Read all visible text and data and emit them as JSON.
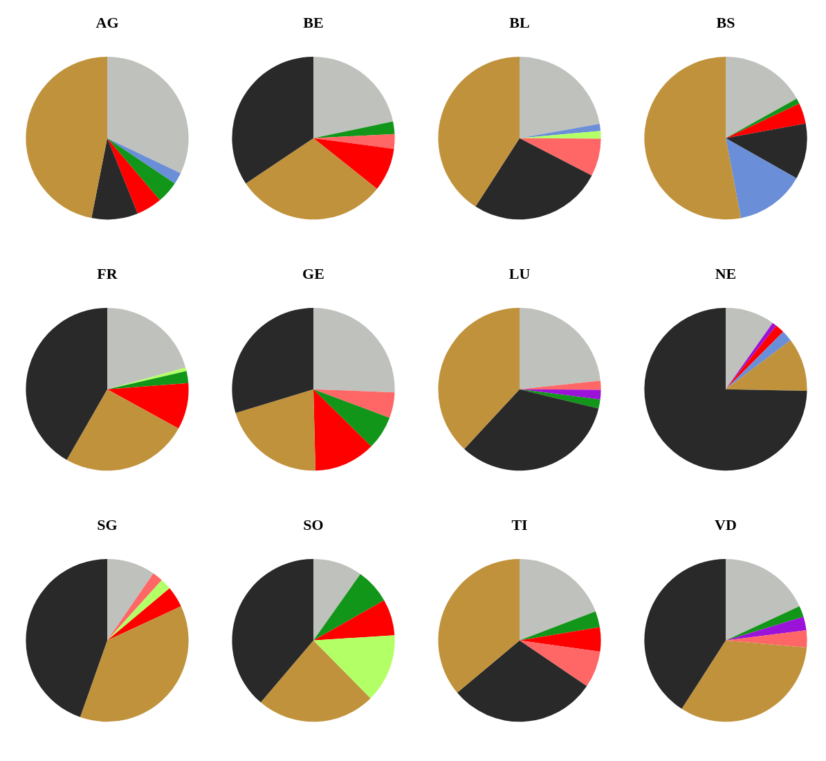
{
  "chart_data": [
    {
      "type": "pie",
      "title": "AG",
      "categories": [
        null,
        null,
        null,
        null,
        null,
        null
      ],
      "values": [
        32.1,
        2.3,
        4.4,
        5.1,
        9.2,
        46.9
      ],
      "colors": [
        "#bfc1bc",
        "#6a8ed8",
        "#119619",
        "#ff0000",
        "#292929",
        "#c1923c"
      ]
    },
    {
      "type": "pie",
      "title": "BE",
      "categories": [
        null,
        null,
        null,
        null,
        null,
        null
      ],
      "values": [
        21.7,
        2.5,
        2.9,
        8.6,
        29.9,
        34.4
      ],
      "colors": [
        "#bfc1bc",
        "#119619",
        "#ff6666",
        "#ff0000",
        "#c1923c",
        "#292929"
      ]
    },
    {
      "type": "pie",
      "title": "BL",
      "categories": [
        null,
        null,
        null,
        null,
        null,
        null
      ],
      "values": [
        22.2,
        1.4,
        1.5,
        7.5,
        26.5,
        40.9
      ],
      "colors": [
        "#bfc1bc",
        "#6a8ed8",
        "#b3ff66",
        "#ff6666",
        "#292929",
        "#c1923c"
      ]
    },
    {
      "type": "pie",
      "title": "BS",
      "categories": [
        null,
        null,
        null,
        null,
        null,
        null
      ],
      "values": [
        16.9,
        1.1,
        4.1,
        11.1,
        13.8,
        53.0
      ],
      "colors": [
        "#bfc1bc",
        "#119619",
        "#ff0000",
        "#292929",
        "#6a8ed8",
        "#c1923c"
      ]
    },
    {
      "type": "pie",
      "title": "FR",
      "categories": [
        null,
        null,
        null,
        null,
        null,
        null
      ],
      "values": [
        20.7,
        0.7,
        2.4,
        9.2,
        25.3,
        41.7
      ],
      "colors": [
        "#bfc1bc",
        "#b3ff66",
        "#119619",
        "#ff0000",
        "#c1923c",
        "#292929"
      ]
    },
    {
      "type": "pie",
      "title": "GE",
      "categories": [
        null,
        null,
        null,
        null,
        null,
        null
      ],
      "values": [
        25.6,
        5.1,
        6.7,
        12.2,
        20.7,
        29.7
      ],
      "colors": [
        "#bfc1bc",
        "#ff6666",
        "#119619",
        "#ff0000",
        "#c1923c",
        "#292929"
      ]
    },
    {
      "type": "pie",
      "title": "LU",
      "categories": [
        null,
        null,
        null,
        null,
        null,
        null
      ],
      "values": [
        23.3,
        1.8,
        1.9,
        1.8,
        33.1,
        38.1
      ],
      "colors": [
        "#bfc1bc",
        "#ff6666",
        "#9b12d9",
        "#119619",
        "#292929",
        "#c1923c"
      ]
    },
    {
      "type": "pie",
      "title": "NE",
      "categories": [
        null,
        null,
        null,
        null,
        null,
        null
      ],
      "values": [
        9.8,
        0.9,
        1.8,
        2.2,
        10.6,
        74.7
      ],
      "colors": [
        "#bfc1bc",
        "#9b12d9",
        "#ff0000",
        "#6a8ed8",
        "#c1923c",
        "#292929"
      ]
    },
    {
      "type": "pie",
      "title": "SG",
      "categories": [
        null,
        null,
        null,
        null,
        null,
        null
      ],
      "values": [
        9.6,
        2.1,
        2.2,
        4.2,
        37.3,
        44.6
      ],
      "colors": [
        "#bfc1bc",
        "#ff6666",
        "#b3ff66",
        "#ff0000",
        "#c1923c",
        "#292929"
      ]
    },
    {
      "type": "pie",
      "title": "SO",
      "categories": [
        null,
        null,
        null,
        null,
        null,
        null
      ],
      "values": [
        9.8,
        7.0,
        7.2,
        13.6,
        23.6,
        38.8
      ],
      "colors": [
        "#bfc1bc",
        "#119619",
        "#ff0000",
        "#b3ff66",
        "#c1923c",
        "#292929"
      ]
    },
    {
      "type": "pie",
      "title": "TI",
      "categories": [
        null,
        null,
        null,
        null,
        null,
        null
      ],
      "values": [
        19.2,
        3.2,
        4.8,
        7.3,
        29.4,
        36.1
      ],
      "colors": [
        "#bfc1bc",
        "#119619",
        "#ff0000",
        "#ff6666",
        "#292929",
        "#c1923c"
      ]
    },
    {
      "type": "pie",
      "title": "VD",
      "categories": [
        null,
        null,
        null,
        null,
        null,
        null
      ],
      "values": [
        18.1,
        2.2,
        2.7,
        3.4,
        32.7,
        40.9
      ],
      "colors": [
        "#bfc1bc",
        "#119619",
        "#9b12d9",
        "#ff6666",
        "#c1923c",
        "#292929"
      ]
    }
  ]
}
